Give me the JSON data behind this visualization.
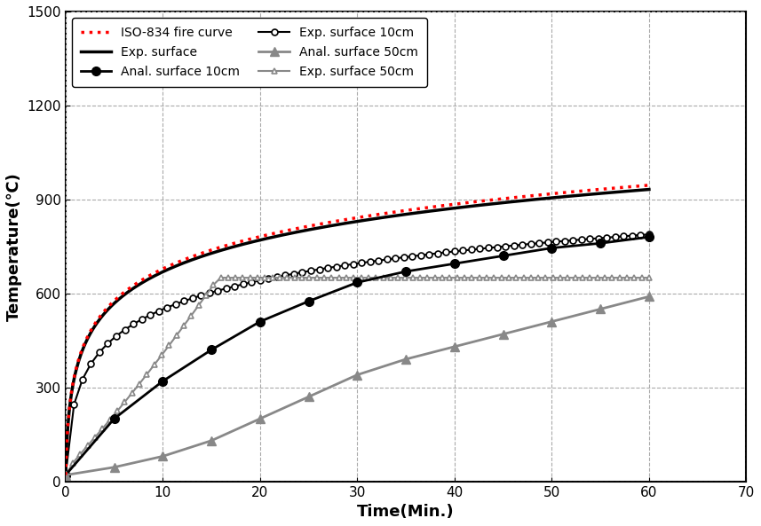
{
  "title": "",
  "xlabel": "Time(Min.)",
  "ylabel": "Temperature(℃)",
  "xlim": [
    0,
    70
  ],
  "ylim": [
    0,
    1500
  ],
  "xticks": [
    0,
    10,
    20,
    30,
    40,
    50,
    60,
    70
  ],
  "yticks": [
    0,
    300,
    600,
    900,
    1200,
    1500
  ],
  "grid_color": "#aaaaaa",
  "background_color": "#ffffff",
  "legend_entries": [
    "ISO-834 fire curve",
    "Exp. surface",
    "Anal. surface 10cm",
    "Exp. surface 10cm",
    "Anal. surface 50cm",
    "Exp. surface 50cm"
  ],
  "anal_surface_10cm_x": [
    0,
    5,
    10,
    15,
    20,
    25,
    30,
    35,
    40,
    45,
    50,
    55,
    60
  ],
  "anal_surface_10cm_y": [
    20,
    200,
    320,
    420,
    510,
    575,
    635,
    670,
    695,
    720,
    745,
    760,
    780
  ],
  "exp_surface_10cm_x": [
    0,
    1,
    2,
    3,
    4,
    5,
    6,
    7,
    8,
    9,
    10,
    11,
    12,
    13,
    14,
    15,
    16,
    17,
    18,
    19,
    20,
    21,
    22,
    23,
    24,
    25,
    26,
    27,
    28,
    29,
    30,
    31,
    32,
    33,
    34,
    35,
    36,
    37,
    38,
    39,
    40,
    41,
    42,
    43,
    44,
    45,
    46,
    47,
    48,
    49,
    50,
    51,
    52,
    53,
    54,
    55,
    56,
    57,
    58,
    59,
    60
  ],
  "anal_surface_50cm_x": [
    0,
    5,
    10,
    15,
    20,
    25,
    30,
    35,
    40,
    45,
    50,
    55,
    60
  ],
  "anal_surface_50cm_y": [
    20,
    45,
    80,
    130,
    200,
    270,
    340,
    390,
    430,
    470,
    510,
    550,
    590
  ],
  "exp_surface_50cm_x": [
    0,
    1,
    2,
    3,
    4,
    5,
    6,
    7,
    8,
    9,
    10,
    11,
    12,
    13,
    14,
    15,
    16,
    17,
    18,
    19,
    20,
    21,
    22,
    23,
    24,
    25,
    26,
    27,
    28,
    29,
    30,
    31,
    32,
    33,
    34,
    35,
    36,
    37,
    38,
    39,
    40,
    41,
    42,
    43,
    44,
    45,
    46,
    47,
    48,
    49,
    50,
    51,
    52,
    53,
    54,
    55,
    56,
    57,
    58,
    59,
    60
  ],
  "iso_color": "#ff0000",
  "exp_surface_color": "#000000",
  "anal_10cm_color": "#000000",
  "exp_10cm_color": "#000000",
  "anal_50cm_color": "#888888",
  "exp_50cm_color": "#888888"
}
